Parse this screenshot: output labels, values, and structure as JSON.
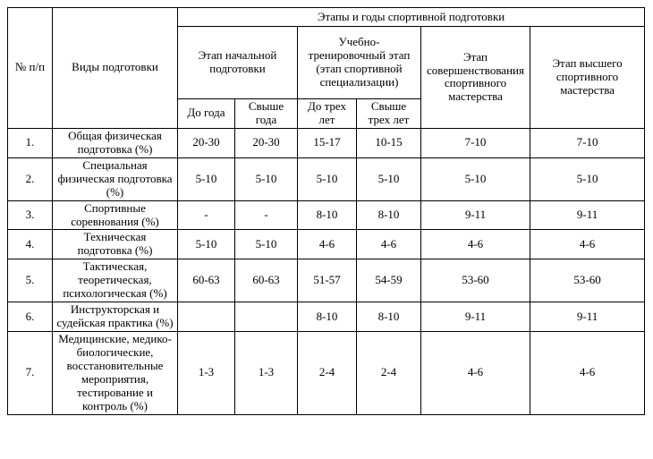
{
  "table": {
    "top_header": "Этапы и годы спортивной подготовки",
    "col_num_header": "№ п/п",
    "col_types_header": "Виды подготовки",
    "stage_headers": [
      {
        "label": "Этап начальной подготовки"
      },
      {
        "label": "Учебно-тренировочный этап (этап спортивной специализации)"
      },
      {
        "label": "Этап совершенствования спортивного мастерства"
      },
      {
        "label": "Этап высшего спортивного мастерства"
      }
    ],
    "sub_headers": [
      "До года",
      "Свыше года",
      "До трех лет",
      "Свыше трех лет"
    ],
    "rows": [
      {
        "num": "1.",
        "type": "Общая физическая подготовка (%)",
        "values": [
          "20-30",
          "20-30",
          "15-17",
          "10-15",
          "7-10",
          "7-10"
        ]
      },
      {
        "num": "2.",
        "type": "Специальная физическая подготовка (%)",
        "values": [
          "5-10",
          "5-10",
          "5-10",
          "5-10",
          "5-10",
          "5-10"
        ]
      },
      {
        "num": "3.",
        "type": "Спортивные соревнования (%)",
        "values": [
          "-",
          "-",
          "8-10",
          "8-10",
          "9-11",
          "9-11"
        ]
      },
      {
        "num": "4.",
        "type": "Техническая подготовка (%)",
        "values": [
          "5-10",
          "5-10",
          "4-6",
          "4-6",
          "4-6",
          "4-6"
        ]
      },
      {
        "num": "5.",
        "type": "Тактическая, теоретическая, психологическая (%)",
        "values": [
          "60-63",
          "60-63",
          "51-57",
          "54-59",
          "53-60",
          "53-60"
        ]
      },
      {
        "num": "6.",
        "type": "Инструкторская и судейская практика (%)",
        "values": [
          "",
          "",
          "8-10",
          "8-10",
          "9-11",
          "9-11"
        ]
      },
      {
        "num": "7.",
        "type": "Медицинские, медико-биологические, восстановительные мероприятия, тестирование и контроль (%)",
        "values": [
          "1-3",
          "1-3",
          "2-4",
          "2-4",
          "4-6",
          "4-6"
        ]
      }
    ]
  }
}
